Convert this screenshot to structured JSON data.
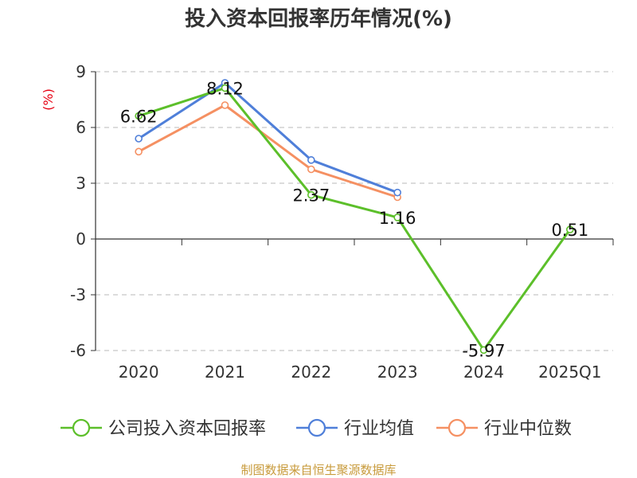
{
  "chart_data": {
    "type": "line",
    "title": "投入资本回报率历年情况(%)",
    "ylabel": "(%)",
    "categories": [
      "2020",
      "2021",
      "2022",
      "2023",
      "2024",
      "2025Q1"
    ],
    "ylim": [
      -6,
      9
    ],
    "yticks": [
      9,
      6,
      3,
      0,
      -3,
      -6
    ],
    "grid": true,
    "legend_position": "bottom",
    "series": [
      {
        "name": "公司投入资本回报率",
        "color": "#5cbf2a",
        "values": [
          6.62,
          8.12,
          2.37,
          1.16,
          -5.97,
          0.51
        ],
        "labels": [
          "6.62",
          "8.12",
          "2.37",
          "1.16",
          "-5.97",
          "0.51"
        ]
      },
      {
        "name": "行业均值",
        "color": "#4f7fd9",
        "values": [
          5.4,
          8.4,
          4.25,
          2.5,
          null,
          null
        ]
      },
      {
        "name": "行业中位数",
        "color": "#f59062",
        "values": [
          4.7,
          7.2,
          3.75,
          2.25,
          null,
          null
        ]
      }
    ],
    "source": "制图数据来自恒生聚源数据库"
  }
}
